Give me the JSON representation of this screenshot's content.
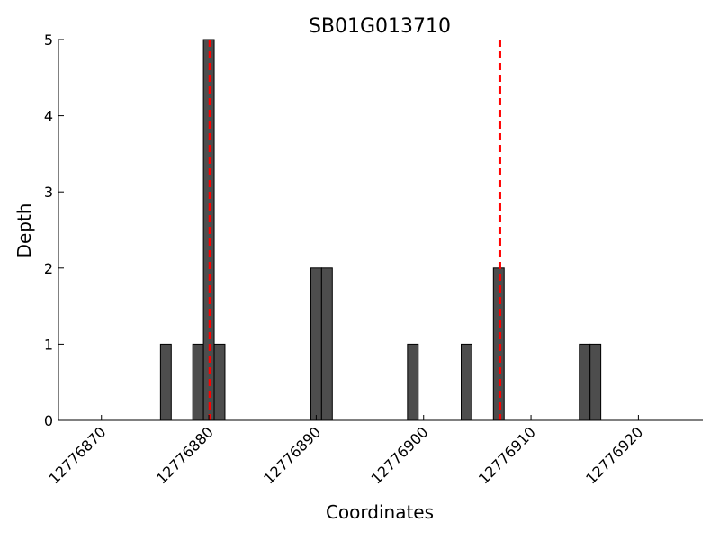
{
  "chart_data": {
    "type": "bar",
    "title": "SB01G013710",
    "xlabel": "Coordinates",
    "ylabel": "Depth",
    "xlim": [
      12776866,
      12776926
    ],
    "ylim": [
      0,
      5
    ],
    "xticks": [
      12776870,
      12776880,
      12776890,
      12776900,
      12776910,
      12776920
    ],
    "yticks": [
      0,
      1,
      2,
      3,
      4,
      5
    ],
    "bar_width": 1,
    "bars": [
      {
        "x": 12776876,
        "value": 1
      },
      {
        "x": 12776879,
        "value": 1
      },
      {
        "x": 12776880,
        "value": 5
      },
      {
        "x": 12776881,
        "value": 1
      },
      {
        "x": 12776890,
        "value": 2
      },
      {
        "x": 12776891,
        "value": 2
      },
      {
        "x": 12776899,
        "value": 1
      },
      {
        "x": 12776904,
        "value": 1
      },
      {
        "x": 12776907,
        "value": 2
      },
      {
        "x": 12776915,
        "value": 1
      },
      {
        "x": 12776916,
        "value": 1
      }
    ],
    "bar_color": "#4d4d4d",
    "reference_lines": [
      12776880.1,
      12776907.1
    ],
    "reference_line_color": "#ff0000",
    "grid": false,
    "legend": "none"
  }
}
